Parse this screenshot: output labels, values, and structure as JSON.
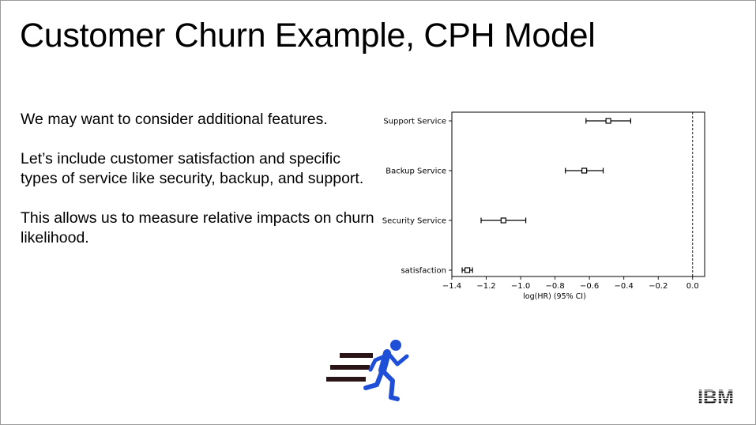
{
  "slide": {
    "title": "Customer Churn Example, CPH Model",
    "paragraphs": [
      "We may want to consider additional features.",
      "Let’s include customer satisfaction and specific types of service like security, backup, and support.",
      "This allows us to measure relative impacts on churn likelihood."
    ],
    "logo_text": "IBM",
    "runner_icon": "running-person-icon"
  },
  "chart_data": {
    "type": "scatter",
    "title": "",
    "xlabel": "log(HR) (95% CI)",
    "ylabel": "",
    "xlim": [
      -1.4,
      0.07
    ],
    "xticks": [
      -1.4,
      -1.2,
      -1.0,
      -0.8,
      -0.6,
      -0.4,
      -0.2,
      0.0
    ],
    "xtick_labels": [
      "−1.4",
      "−1.2",
      "−1.0",
      "−0.8",
      "−0.6",
      "−0.4",
      "−0.2",
      "0.0"
    ],
    "grid": false,
    "reference_line": 0.0,
    "categories": [
      "Support Service",
      "Backup Service",
      "Security Service",
      "satisfaction"
    ],
    "coef": [
      -0.49,
      -0.63,
      -1.1,
      -1.31
    ],
    "ci_lower": [
      -0.62,
      -0.74,
      -1.23,
      -1.34
    ],
    "ci_upper": [
      -0.36,
      -0.52,
      -0.97,
      -1.28
    ]
  }
}
